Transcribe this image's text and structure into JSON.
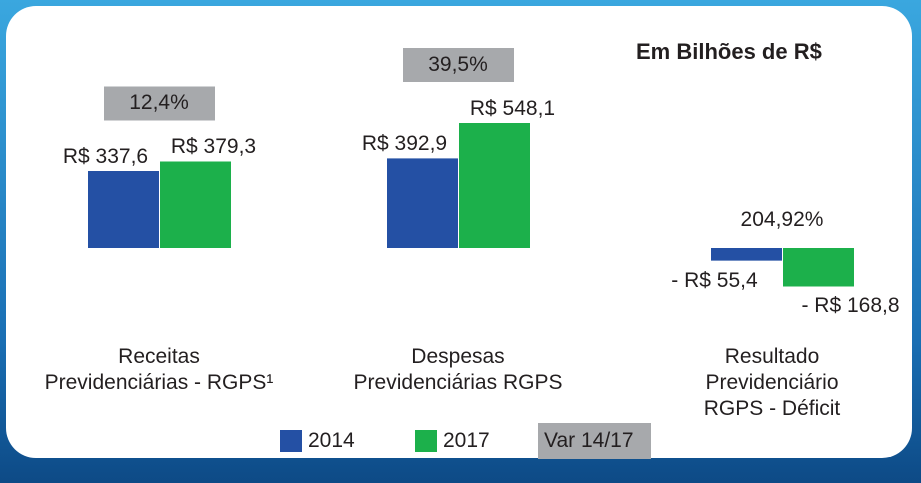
{
  "chart_data": {
    "type": "bar",
    "title": "Em Bilhões de R$",
    "categories": [
      "Receitas\nPrevidenciárias - RGPS¹",
      "Despesas\nPrevidenciárias RGPS",
      "Resultado\nPrevidenciário\nRGPS - Déficit"
    ],
    "series": [
      {
        "name": "2014",
        "color": "#2450a4",
        "values": [
          337.6,
          392.9,
          -55.4
        ],
        "value_labels": [
          "R$ 337,6",
          "R$ 392,9",
          "- R$ 55,4"
        ]
      },
      {
        "name": "2017",
        "color": "#1cb04b",
        "values": [
          379.3,
          548.1,
          -168.8
        ],
        "value_labels": [
          "R$ 379,3",
          "R$ 548,1",
          "- R$ 168,8"
        ]
      }
    ],
    "annotations": [
      {
        "text": "12,4%",
        "boxed": true
      },
      {
        "text": "39,5%",
        "boxed": true
      },
      {
        "text": "204,92%",
        "boxed": false
      }
    ],
    "annotation_legend": {
      "name": "Var 14/17",
      "color": "#a7a9ac"
    }
  }
}
